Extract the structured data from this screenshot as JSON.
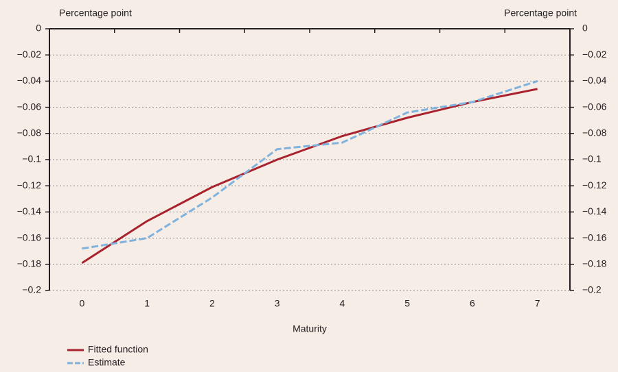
{
  "chart_data": {
    "type": "line",
    "y_label": "Percentage point",
    "y2_label": "Percentage point",
    "x_label": "Maturity",
    "categories": [
      "0",
      "1",
      "2",
      "3",
      "4",
      "5",
      "6",
      "7"
    ],
    "series": [
      {
        "name": "Fitted function",
        "color": "#a8232d",
        "dashed": false,
        "values": [
          -0.179,
          -0.147,
          -0.121,
          -0.1,
          -0.082,
          -0.068,
          -0.056,
          -0.046
        ]
      },
      {
        "name": "Estimate",
        "color": "#7fb2dc",
        "dashed": true,
        "values": [
          -0.168,
          -0.16,
          -0.129,
          -0.092,
          -0.087,
          -0.064,
          -0.056,
          -0.04
        ]
      }
    ],
    "ylim": [
      -0.2,
      0
    ],
    "yticks": [
      0,
      {
        "value": -0.02,
        "label": "−0.02"
      },
      {
        "value": -0.04,
        "label": "−0.04"
      },
      {
        "value": -0.06,
        "label": "−0.06"
      },
      {
        "value": -0.08,
        "label": "−0.08"
      },
      {
        "value": -0.1,
        "label": "−0.1"
      },
      {
        "value": -0.12,
        "label": "−0.12"
      },
      {
        "value": -0.14,
        "label": "−0.14"
      },
      {
        "value": -0.16,
        "label": "−0.16"
      },
      {
        "value": -0.18,
        "label": "−0.18"
      },
      {
        "value": -0.2,
        "label": "−0.2"
      }
    ],
    "y2lim": [
      -0.2,
      0
    ],
    "y2ticks": [
      0,
      {
        "value": -0.02,
        "label": "−0.02"
      },
      {
        "value": -0.04,
        "label": "−0.04"
      },
      {
        "value": -0.06,
        "label": "−0.06"
      },
      {
        "value": -0.08,
        "label": "−0.08"
      },
      {
        "value": -0.1,
        "label": "−0.1"
      },
      {
        "value": -0.12,
        "label": "−0.12"
      },
      {
        "value": -0.14,
        "label": "−0.14"
      },
      {
        "value": -0.16,
        "label": "−0.16"
      },
      {
        "value": -0.18,
        "label": "−0.18"
      },
      {
        "value": -0.2,
        "label": "−0.2"
      }
    ],
    "grid": true
  }
}
